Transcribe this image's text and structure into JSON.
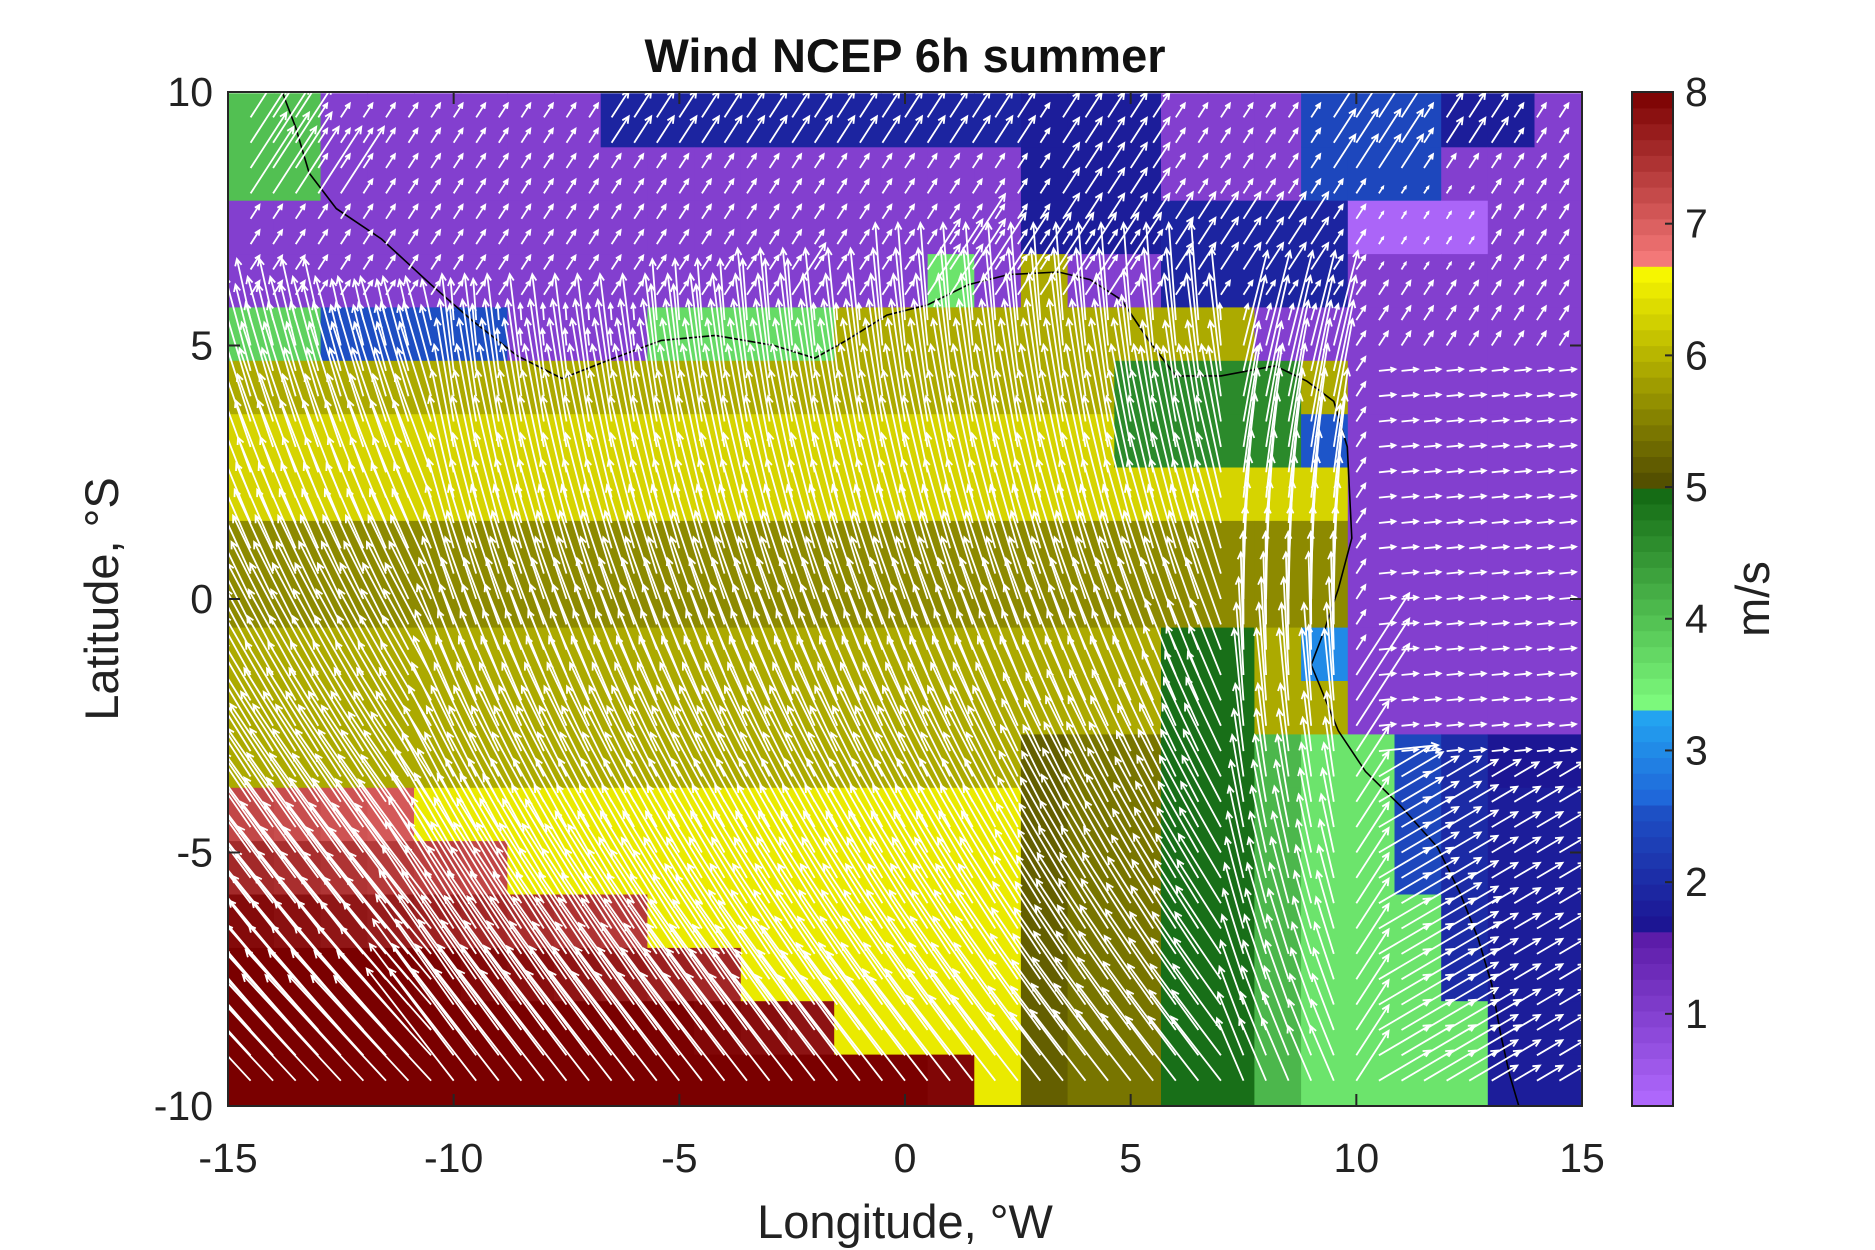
{
  "chart_data": {
    "type": "heatmap",
    "title": "Wind NCEP 6h summer",
    "xlabel": "Longitude, °W",
    "ylabel": "Latitude, °S",
    "colorbar_label": "m/s",
    "xlim": [
      -15,
      15
    ],
    "ylim": [
      -10,
      10
    ],
    "clim": [
      0.3,
      8
    ],
    "grid": false,
    "x_ticks": [
      -15,
      -10,
      -5,
      0,
      5,
      10,
      15
    ],
    "y_ticks": [
      -10,
      -5,
      0,
      5,
      10
    ],
    "colorbar_ticks": [
      1,
      2,
      3,
      4,
      5,
      6,
      7,
      8
    ],
    "colormap": [
      {
        "from": 0.3,
        "to": 1.6,
        "low": "#b26bff",
        "high": "#5a1aa6"
      },
      {
        "from": 1.6,
        "to": 2.6,
        "low": "#1c0f8e",
        "high": "#1d55c9"
      },
      {
        "from": 2.6,
        "to": 3.3,
        "low": "#1f63d8",
        "high": "#23a8f2"
      },
      {
        "from": 3.3,
        "to": 5.0,
        "low": "#80ff80",
        "high": "#116611"
      },
      {
        "from": 5.0,
        "to": 6.7,
        "low": "#4f4a00",
        "high": "#ffff00"
      },
      {
        "from": 6.7,
        "to": 8.0,
        "low": "#f77b7b",
        "high": "#7a0000"
      }
    ],
    "vector_field": "wind direction arrows (white)",
    "coastline": "black",
    "colors": {
      "arrows": "#ffffff",
      "coastline": "#000000",
      "axes": "#262626"
    }
  }
}
